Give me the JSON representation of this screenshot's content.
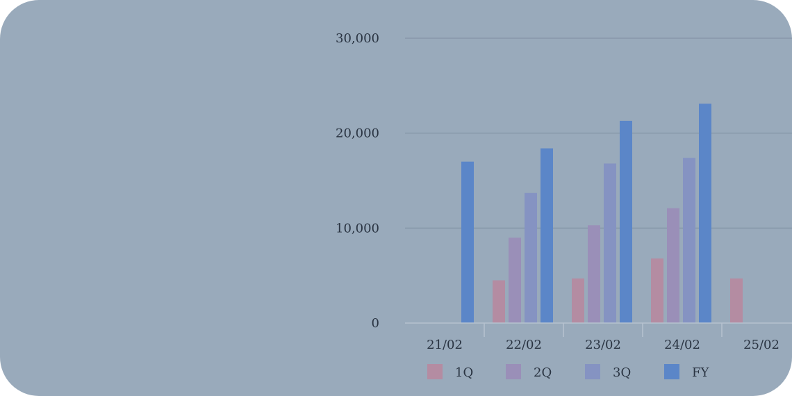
{
  "chart_data": {
    "type": "bar",
    "categories": [
      "21/02",
      "22/02",
      "23/02",
      "24/02",
      "25/02"
    ],
    "series": [
      {
        "name": "1Q",
        "color": "#b48ca2",
        "values": [
          null,
          4500,
          4700,
          6800,
          4700
        ]
      },
      {
        "name": "2Q",
        "color": "#9a8fb8",
        "values": [
          null,
          9000,
          10300,
          12100,
          null
        ]
      },
      {
        "name": "3Q",
        "color": "#8593c2",
        "values": [
          null,
          13700,
          16800,
          17400,
          null
        ]
      },
      {
        "name": "FY",
        "color": "#5b86c8",
        "values": [
          17000,
          18400,
          21300,
          23100,
          null
        ]
      }
    ],
    "y_ticks": [
      "0",
      "10,000",
      "20,000",
      "30,000"
    ],
    "ylim": [
      0,
      30000
    ],
    "grid": true,
    "legend_position": "bottom"
  }
}
